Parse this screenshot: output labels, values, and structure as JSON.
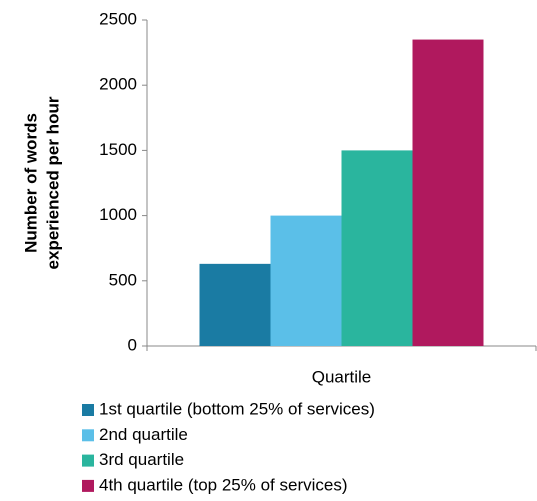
{
  "chart_data": {
    "type": "bar",
    "ylabel": [
      "Number of words",
      "experienced per hour"
    ],
    "categories": [
      "Quartile"
    ],
    "series": [
      {
        "name": "1st quartile (bottom 25% of services)",
        "color": "#1a7ba3",
        "values": [
          630
        ]
      },
      {
        "name": "2nd quartile",
        "color": "#5bbfe8",
        "values": [
          1000
        ]
      },
      {
        "name": "3rd quartile",
        "color": "#2ab59e",
        "values": [
          1500
        ]
      },
      {
        "name": "4th quartile (top 25% of services)",
        "color": "#b0195e",
        "values": [
          2350
        ]
      }
    ],
    "ylim": [
      0,
      2500
    ],
    "yticks": [
      0,
      500,
      1000,
      1500,
      2000,
      2500
    ],
    "grid": false,
    "legend": "bottom"
  }
}
